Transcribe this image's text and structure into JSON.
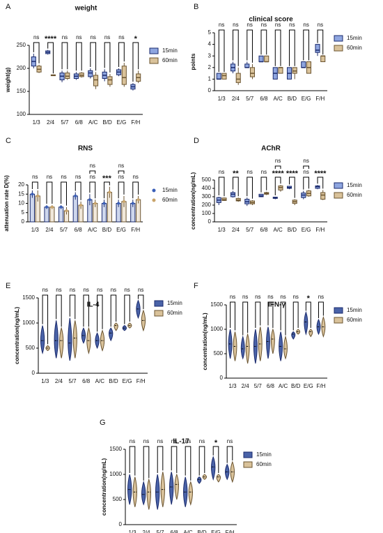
{
  "chart_data": [
    {
      "type": "box",
      "panel": "A",
      "title": "weight",
      "ylabel": "weight(g)",
      "categories": [
        "1/3",
        "2/4",
        "5/7",
        "6/8",
        "A/C",
        "B/D",
        "E/G",
        "F/H"
      ],
      "ylim": [
        100,
        250
      ],
      "yticks": [
        100,
        150,
        200,
        250
      ],
      "series": [
        {
          "name": "15min",
          "color": "#8fa6e0",
          "edgecolor": "#1a2a6c",
          "values": [
            215,
            235,
            183,
            183,
            190,
            185,
            192,
            160
          ],
          "q1": [
            205,
            232,
            175,
            178,
            182,
            178,
            186,
            155
          ],
          "q3": [
            225,
            238,
            190,
            188,
            195,
            192,
            197,
            165
          ],
          "min": [
            200,
            230,
            170,
            175,
            178,
            172,
            183,
            152
          ],
          "max": [
            232,
            240,
            195,
            192,
            200,
            198,
            200,
            168
          ]
        },
        {
          "name": "60min",
          "color": "#d9c29a",
          "edgecolor": "#6b5430",
          "values": [
            198,
            185,
            183,
            185,
            175,
            175,
            180,
            180
          ],
          "q1": [
            192,
            184,
            178,
            182,
            162,
            165,
            165,
            172
          ],
          "q3": [
            205,
            186,
            190,
            190,
            185,
            182,
            205,
            188
          ],
          "min": [
            190,
            184,
            175,
            180,
            155,
            160,
            160,
            168
          ],
          "max": [
            208,
            186,
            195,
            192,
            192,
            188,
            212,
            195
          ]
        }
      ],
      "significance": [
        "ns",
        "****",
        "ns",
        "ns",
        "ns",
        "ns",
        "ns",
        "*"
      ]
    },
    {
      "type": "box",
      "panel": "B",
      "title": "clinical score",
      "ylabel": "points",
      "categories": [
        "1/3",
        "2/4",
        "5/7",
        "6/8",
        "A/C",
        "B/D",
        "E/G",
        "F/H"
      ],
      "ylim": [
        0,
        5
      ],
      "yticks": [
        0,
        1,
        2,
        3,
        4,
        5
      ],
      "series": [
        {
          "name": "15min",
          "color": "#8fa6e0",
          "edgecolor": "#1a2a6c",
          "values": [
            1,
            2,
            2,
            2.5,
            1.5,
            1.5,
            2,
            3.5
          ],
          "q1": [
            1,
            1.7,
            2,
            2.5,
            1,
            1,
            2,
            3.3
          ],
          "q3": [
            1.5,
            2.3,
            2.3,
            3,
            2,
            2,
            2.5,
            4
          ],
          "min": [
            1,
            1.5,
            2,
            2.5,
            1,
            1,
            2,
            3
          ],
          "max": [
            1.5,
            2.5,
            2.5,
            3,
            2,
            2,
            2.5,
            4
          ]
        },
        {
          "name": "60min",
          "color": "#d9c29a",
          "edgecolor": "#6b5430",
          "values": [
            1.3,
            1,
            1.5,
            2.5,
            2,
            1.7,
            2,
            3
          ],
          "q1": [
            1,
            0.7,
            1.2,
            2.5,
            1.5,
            1.5,
            1.5,
            2.5
          ],
          "q3": [
            1.5,
            1.5,
            2,
            3,
            2,
            2,
            2.5,
            3
          ],
          "min": [
            1,
            0.5,
            1,
            2.5,
            1.5,
            1,
            1.5,
            2.5
          ],
          "max": [
            1.5,
            2,
            2.3,
            3,
            2,
            2,
            2.5,
            3
          ]
        }
      ],
      "significance": [
        "ns",
        "ns",
        "ns",
        "ns",
        "ns",
        "ns",
        "ns",
        "ns"
      ]
    },
    {
      "type": "bar",
      "panel": "C",
      "title": "RNS",
      "ylabel": "attenuation rate D(%)",
      "categories": [
        "1/3",
        "2/4",
        "5/7",
        "6/8",
        "A/C",
        "B/D",
        "E/G",
        "F/H"
      ],
      "ylim": [
        0,
        20
      ],
      "yticks": [
        0,
        5,
        10,
        15,
        20
      ],
      "series": [
        {
          "name": "15min",
          "color": "#3a5fb8",
          "edgecolor": "#1a2a6c",
          "values": [
            15,
            8,
            8,
            14,
            12,
            10,
            10,
            10
          ],
          "errors": [
            2,
            1,
            1,
            2,
            3,
            2,
            2,
            2
          ]
        },
        {
          "name": "60min",
          "color": "#c9a46a",
          "edgecolor": "#6b5430",
          "values": [
            14,
            8,
            6,
            9,
            10,
            16,
            11,
            12
          ],
          "errors": [
            3,
            1,
            2,
            2,
            2,
            3,
            3,
            2
          ]
        }
      ],
      "significance": [
        "ns",
        "ns",
        "ns",
        "ns",
        "ns",
        "***",
        "ns",
        "ns"
      ],
      "upper_significance": [
        null,
        null,
        null,
        null,
        "ns",
        null,
        "ns",
        null
      ]
    },
    {
      "type": "box",
      "panel": "D",
      "title": "AChR",
      "ylabel": "concentration(ng/mL)",
      "categories": [
        "1/3",
        "2/4",
        "5/7",
        "6/8",
        "A/C",
        "B/D",
        "E/G",
        "F/H"
      ],
      "ylim": [
        0,
        500
      ],
      "yticks": [
        0,
        100,
        200,
        300,
        400,
        500
      ],
      "series": [
        {
          "name": "15min",
          "color": "#8fa6e0",
          "edgecolor": "#1a2a6c",
          "values": [
            260,
            330,
            240,
            310,
            285,
            410,
            320,
            420
          ],
          "q1": [
            230,
            300,
            215,
            300,
            280,
            400,
            290,
            400
          ],
          "q3": [
            290,
            350,
            270,
            330,
            295,
            425,
            345,
            430
          ],
          "min": [
            200,
            290,
            190,
            295,
            270,
            390,
            270,
            390
          ],
          "max": [
            300,
            370,
            290,
            335,
            300,
            430,
            370,
            440
          ]
        },
        {
          "name": "60min",
          "color": "#d9c29a",
          "edgecolor": "#6b5430",
          "values": [
            265,
            260,
            230,
            340,
            410,
            240,
            340,
            320
          ],
          "q1": [
            255,
            250,
            215,
            330,
            380,
            220,
            310,
            270
          ],
          "q3": [
            285,
            280,
            250,
            350,
            430,
            260,
            370,
            350
          ],
          "min": [
            250,
            240,
            200,
            320,
            360,
            200,
            300,
            260
          ],
          "max": [
            290,
            290,
            260,
            360,
            440,
            270,
            380,
            380
          ]
        }
      ],
      "significance": [
        "ns",
        "**",
        "ns",
        "ns",
        "****",
        "****",
        "ns",
        "****"
      ],
      "upper_significance": [
        null,
        null,
        null,
        null,
        "ns",
        null,
        "ns",
        null
      ]
    },
    {
      "type": "violin",
      "panel": "E",
      "title": "IL-4",
      "ylabel": "concentration(ng/mL)",
      "categories": [
        "1/3",
        "2/4",
        "5/7",
        "6/8",
        "A/C",
        "B/D",
        "E/G",
        "F/H"
      ],
      "ylim": [
        0,
        1500
      ],
      "yticks": [
        0,
        500,
        1000,
        1500
      ],
      "series": [
        {
          "name": "15min",
          "color": "#4a63a8",
          "edgecolor": "#1a2a6c",
          "values": [
            650,
            650,
            600,
            750,
            650,
            800,
            900,
            1280
          ],
          "min": [
            400,
            300,
            250,
            600,
            500,
            650,
            850,
            1100
          ],
          "max": [
            950,
            1050,
            1100,
            900,
            800,
            900,
            950,
            1450
          ]
        },
        {
          "name": "60min",
          "color": "#d9c29a",
          "edgecolor": "#6b5430",
          "values": [
            500,
            650,
            700,
            650,
            650,
            950,
            950,
            1050
          ],
          "min": [
            450,
            300,
            300,
            400,
            450,
            850,
            900,
            850
          ],
          "max": [
            550,
            900,
            1050,
            900,
            850,
            1000,
            1000,
            1250
          ]
        }
      ],
      "significance": [
        "ns",
        "ns",
        "ns",
        "ns",
        "ns",
        "ns",
        "ns",
        "ns"
      ]
    },
    {
      "type": "violin",
      "panel": "F",
      "title": "IFN-γ",
      "ylabel": "concentration(ng/mL)",
      "categories": [
        "1/3",
        "2/4",
        "5/7",
        "6/8",
        "A/C",
        "B/D",
        "E/G",
        "F/H"
      ],
      "ylim": [
        0,
        1500
      ],
      "yticks": [
        0,
        500,
        1000,
        1500
      ],
      "series": [
        {
          "name": "15min",
          "color": "#4a63a8",
          "edgecolor": "#1a2a6c",
          "values": [
            700,
            600,
            650,
            750,
            650,
            900,
            1150,
            1050
          ],
          "min": [
            400,
            400,
            300,
            400,
            350,
            800,
            900,
            900
          ],
          "max": [
            1000,
            850,
            1000,
            1050,
            950,
            950,
            1350,
            1200
          ]
        },
        {
          "name": "60min",
          "color": "#d9c29a",
          "edgecolor": "#6b5430",
          "values": [
            650,
            650,
            700,
            800,
            600,
            950,
            950,
            1050
          ],
          "min": [
            350,
            300,
            350,
            500,
            400,
            900,
            850,
            850
          ],
          "max": [
            950,
            900,
            1050,
            1000,
            850,
            1000,
            1000,
            1250
          ]
        }
      ],
      "significance": [
        "ns",
        "ns",
        "ns",
        "ns",
        "ns",
        "ns",
        "*",
        "ns"
      ]
    },
    {
      "type": "violin",
      "panel": "G",
      "title": "IL-17",
      "ylabel": "concentration(ng/mL)",
      "categories": [
        "1/3",
        "2/4",
        "5/7",
        "6/8",
        "A/C",
        "B/D",
        "E/G",
        "F/H"
      ],
      "ylim": [
        0,
        1500
      ],
      "yticks": [
        0,
        500,
        1000,
        1500
      ],
      "series": [
        {
          "name": "15min",
          "color": "#4a63a8",
          "edgecolor": "#1a2a6c",
          "values": [
            700,
            600,
            650,
            750,
            650,
            900,
            1150,
            1050
          ],
          "min": [
            400,
            400,
            300,
            400,
            350,
            820,
            900,
            900
          ],
          "max": [
            1000,
            850,
            1000,
            1050,
            950,
            950,
            1350,
            1200
          ]
        },
        {
          "name": "60min",
          "color": "#d9c29a",
          "edgecolor": "#6b5430",
          "values": [
            650,
            650,
            700,
            800,
            650,
            950,
            950,
            1050
          ],
          "min": [
            350,
            300,
            350,
            500,
            400,
            900,
            850,
            850
          ],
          "max": [
            950,
            900,
            1050,
            1000,
            850,
            1000,
            1000,
            1250
          ]
        }
      ],
      "significance": [
        "ns",
        "ns",
        "ns",
        "ns",
        "ns",
        "ns",
        "*",
        "ns"
      ]
    }
  ]
}
